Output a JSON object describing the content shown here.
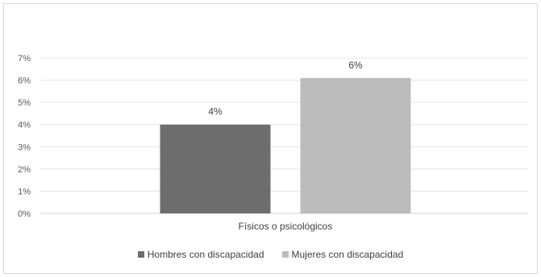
{
  "chart_data": {
    "type": "bar",
    "categories": [
      "Físicos o psicológicos"
    ],
    "series": [
      {
        "name": "Hombres con discapacidad",
        "values": [
          4
        ],
        "label": "4%",
        "color": "#6d6d6d"
      },
      {
        "name": "Mujeres con discapacidad",
        "values": [
          6.1
        ],
        "label": "6%",
        "color": "#bcbcbc"
      }
    ],
    "y_ticks": [
      "0%",
      "1%",
      "2%",
      "3%",
      "4%",
      "5%",
      "6%",
      "7%"
    ],
    "ylim": [
      0,
      7
    ],
    "grid": true,
    "legend_position": "bottom"
  }
}
